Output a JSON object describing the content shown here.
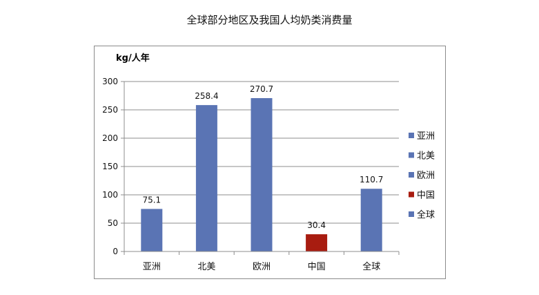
{
  "chart_data": {
    "type": "bar",
    "title": "全球部分地区及我国人均奶类消费量",
    "ylabel": "kg/人年",
    "xlabel": "",
    "categories": [
      "亚洲",
      "北美",
      "欧洲",
      "中国",
      "全球"
    ],
    "values": [
      75.1,
      258.4,
      270.7,
      30.4,
      110.7
    ],
    "data_labels": [
      "75.1",
      "258.4",
      "270.7",
      "30.4",
      "110.7"
    ],
    "bar_colors": [
      "#5a74b4",
      "#5a74b4",
      "#5a74b4",
      "#a81c10",
      "#5a74b4"
    ],
    "ylim": [
      0,
      300
    ],
    "yticks": [
      0,
      50,
      100,
      150,
      200,
      250,
      300
    ],
    "ytick_labels": [
      "0",
      "50",
      "100",
      "150",
      "200",
      "250",
      "300"
    ],
    "grid": true,
    "legend_position": "right",
    "legend": [
      {
        "label": "亚洲",
        "color": "#5a74b4"
      },
      {
        "label": "北美",
        "color": "#5a74b4"
      },
      {
        "label": "欧洲",
        "color": "#5a74b4"
      },
      {
        "label": "中国",
        "color": "#a81c10"
      },
      {
        "label": "全球",
        "color": "#5a74b4"
      }
    ]
  }
}
